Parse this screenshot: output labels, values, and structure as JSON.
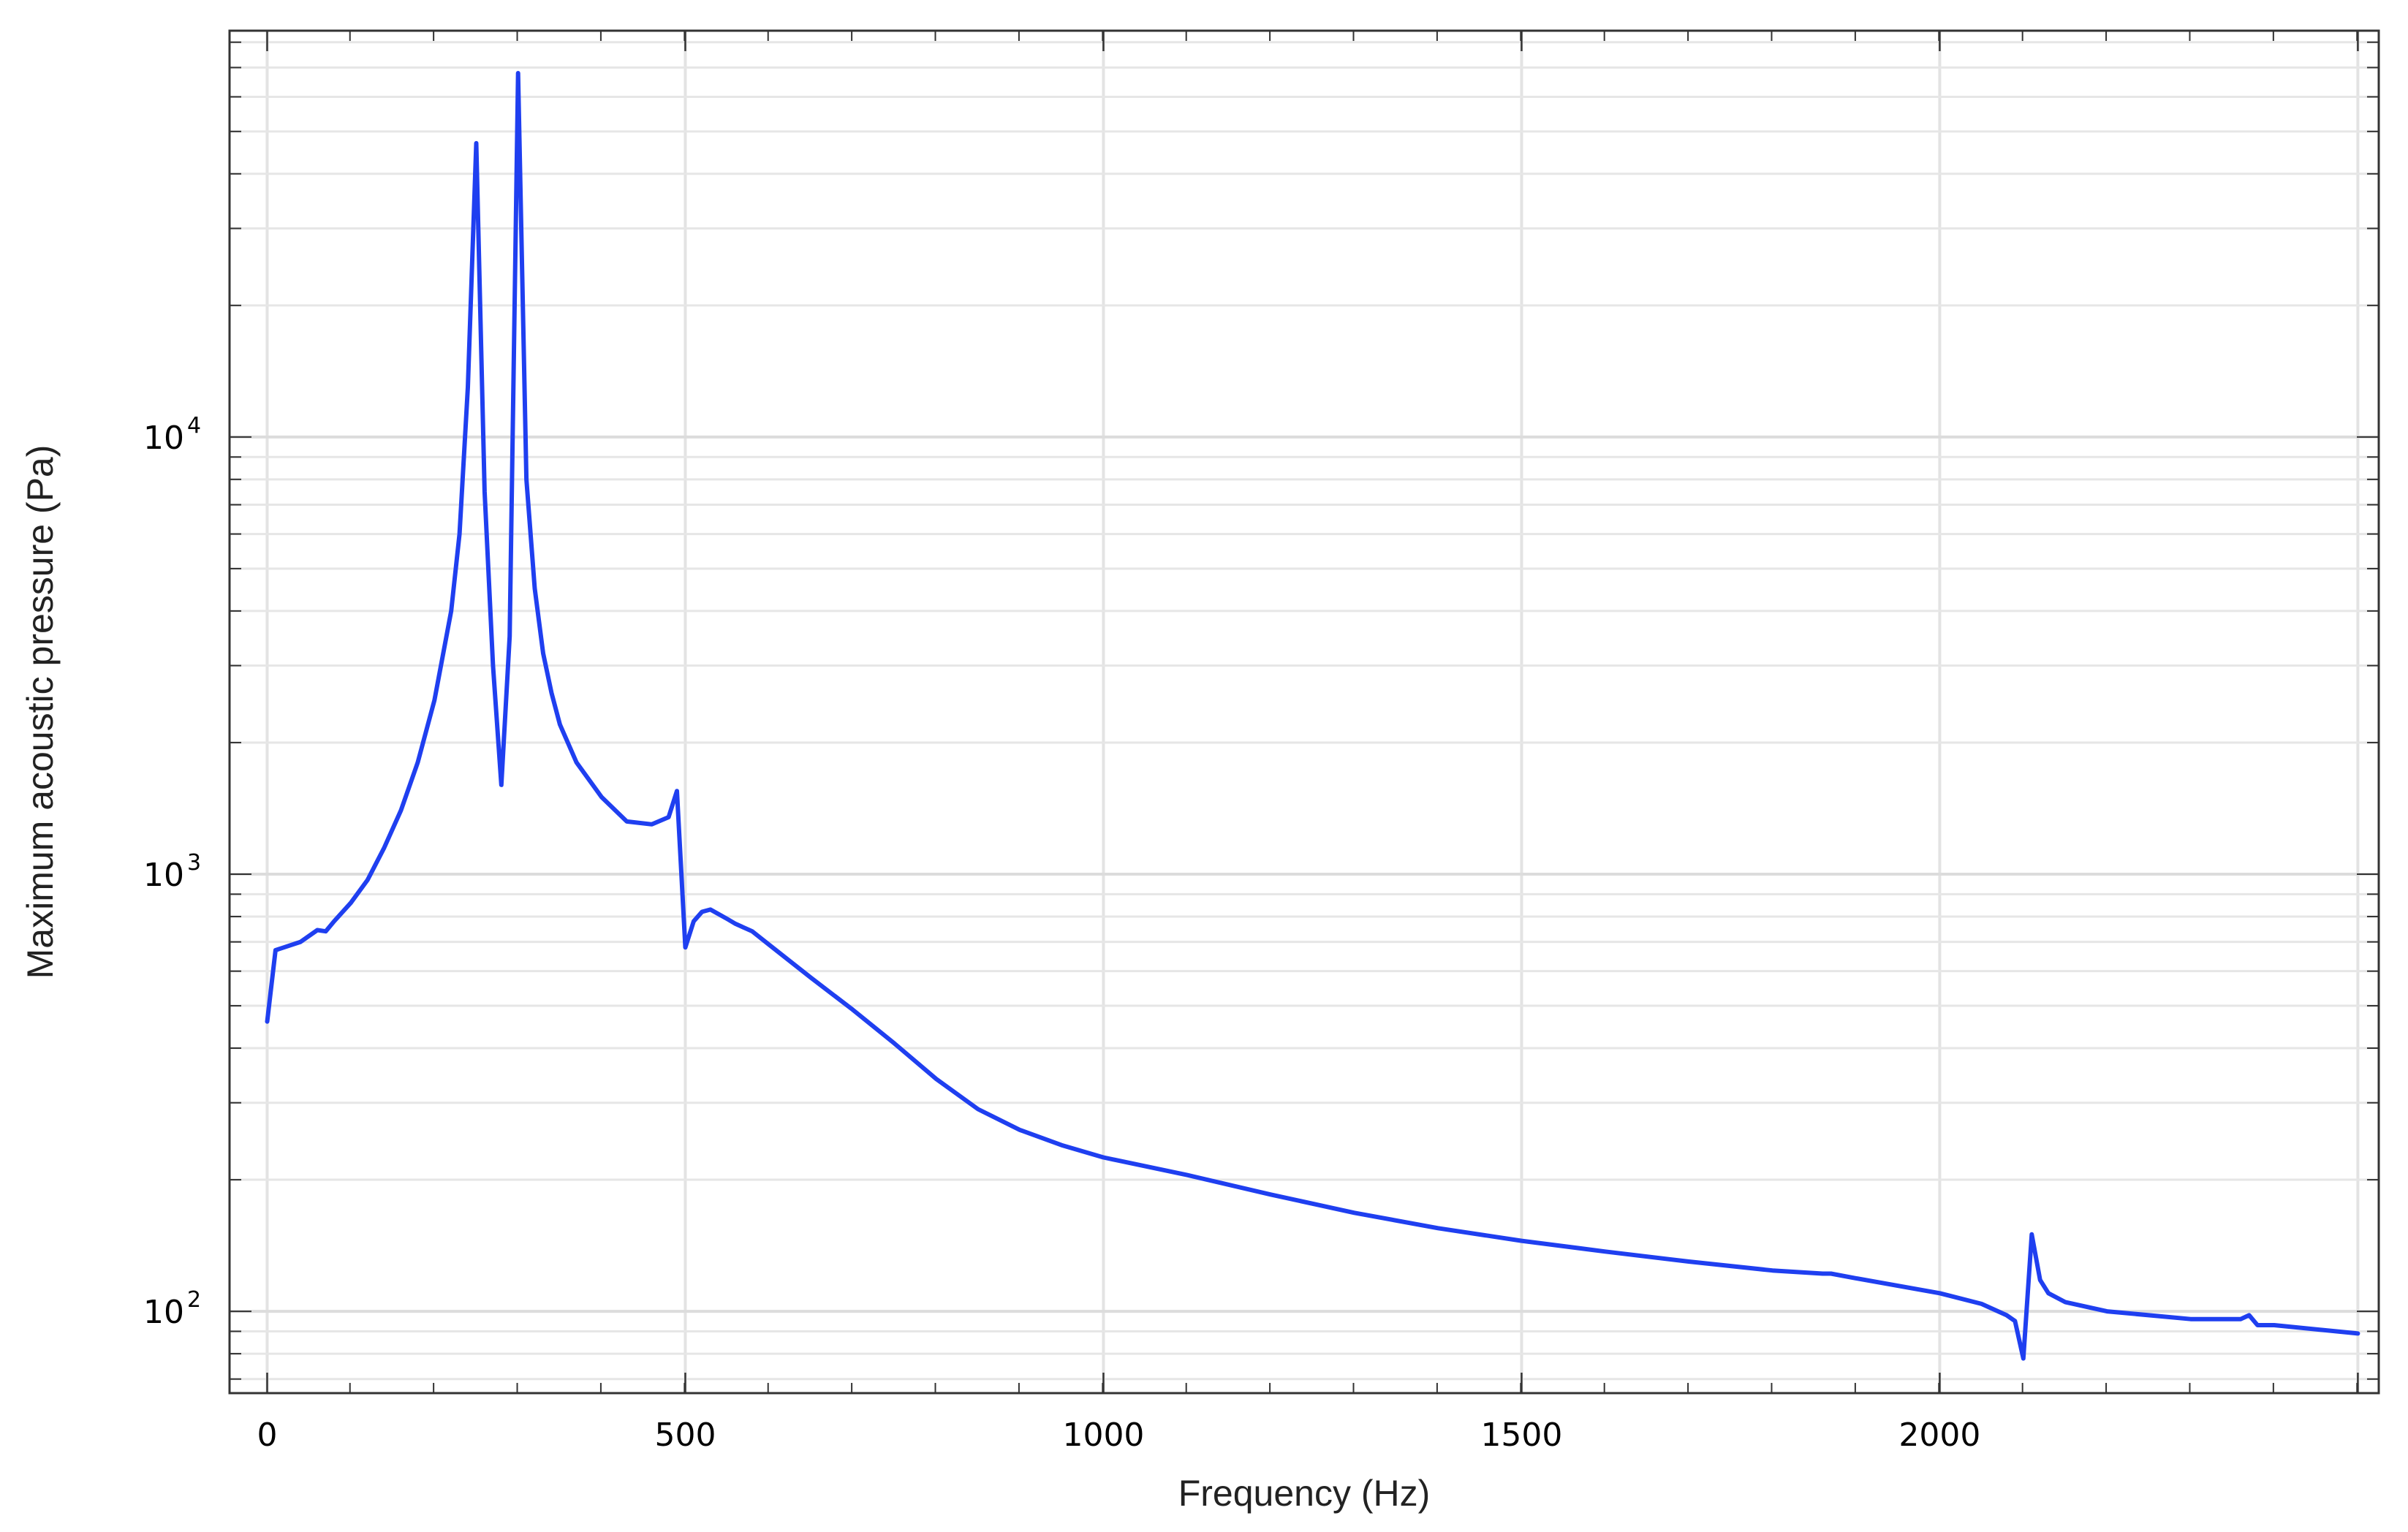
{
  "chart_data": {
    "type": "line",
    "xlabel": "Frequency (Hz)",
    "ylabel": "Maximum acoustic pressure (Pa)",
    "xlim": [
      -45,
      2525
    ],
    "ylim": [
      65,
      85000
    ],
    "y_scale": "log",
    "grid": true,
    "legend": "none",
    "x_ticks": [
      0,
      500,
      1000,
      1500,
      2000
    ],
    "x_tick_labels": [
      "0",
      "500",
      "1000",
      "1500",
      "2000"
    ],
    "y_ticks": [
      {
        "value": 100,
        "base": "10",
        "exp": "2"
      },
      {
        "value": 1000,
        "base": "10",
        "exp": "3"
      },
      {
        "value": 10000,
        "base": "10",
        "exp": "4"
      }
    ],
    "line_color": "#1f3ff0",
    "series": [
      {
        "x": [
          0,
          10,
          20,
          40,
          60,
          70,
          80,
          100,
          120,
          140,
          160,
          180,
          200,
          220,
          230,
          240,
          250,
          260,
          270,
          280,
          290,
          300,
          310,
          320,
          330,
          340,
          350,
          370,
          400,
          430,
          460,
          480,
          490,
          500,
          510,
          520,
          530,
          540,
          550,
          560,
          580,
          600,
          650,
          700,
          750,
          800,
          850,
          900,
          950,
          1000,
          1100,
          1200,
          1300,
          1400,
          1500,
          1600,
          1700,
          1800,
          1860,
          1870,
          1900,
          2000,
          2050,
          2080,
          2090,
          2100,
          2110,
          2120,
          2130,
          2150,
          2200,
          2300,
          2360,
          2370,
          2380,
          2400,
          2500
        ],
        "y": [
          460,
          670,
          680,
          700,
          745,
          740,
          780,
          860,
          970,
          1150,
          1400,
          1800,
          2500,
          4000,
          6000,
          13000,
          47000,
          7500,
          3000,
          1600,
          3500,
          68000,
          8000,
          4500,
          3200,
          2600,
          2200,
          1800,
          1500,
          1320,
          1300,
          1350,
          1550,
          680,
          780,
          820,
          830,
          810,
          790,
          770,
          740,
          690,
          580,
          490,
          410,
          340,
          290,
          260,
          240,
          225,
          205,
          185,
          168,
          155,
          145,
          137,
          130,
          124,
          122,
          122,
          119,
          110,
          104,
          98,
          95,
          78,
          150,
          118,
          110,
          105,
          100,
          96,
          96,
          98,
          93,
          93,
          89
        ]
      }
    ]
  }
}
